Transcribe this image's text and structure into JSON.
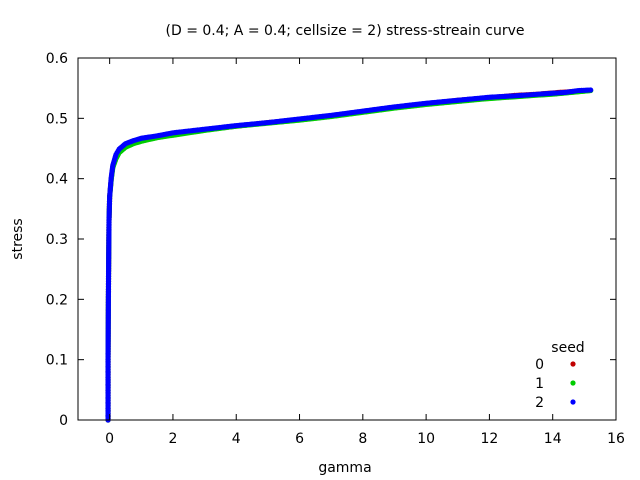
{
  "chart_data": {
    "type": "scatter",
    "title": "(D = 0.4; A = 0.4; cellsize = 2) stress-streain curve",
    "xlabel": "gamma",
    "ylabel": "stress",
    "xlim": [
      -1,
      16
    ],
    "ylim": [
      0,
      0.6
    ],
    "xticks": [
      "0",
      "2",
      "4",
      "6",
      "8",
      "10",
      "12",
      "14",
      "16"
    ],
    "yticks": [
      "0",
      "0.1",
      "0.2",
      "0.3",
      "0.4",
      "0.5",
      "0.6"
    ],
    "grid": false,
    "legend": {
      "title": "seed",
      "position": "bottom-right"
    },
    "series": [
      {
        "name": "0",
        "color": "#c00000",
        "x": [
          -0.05,
          -0.05,
          -0.04,
          -0.03,
          -0.02,
          0.0,
          0.05,
          0.1,
          0.2,
          0.3,
          0.5,
          0.75,
          1.0,
          1.5,
          2.0,
          2.5,
          3.0,
          4.0,
          5.0,
          6.0,
          7.0,
          8.0,
          9.0,
          10.0,
          11.0,
          12.0,
          12.8,
          13.5,
          14.2,
          14.8
        ],
        "y": [
          0.0,
          0.1,
          0.2,
          0.27,
          0.33,
          0.37,
          0.4,
          0.42,
          0.438,
          0.447,
          0.456,
          0.461,
          0.465,
          0.47,
          0.474,
          0.478,
          0.481,
          0.487,
          0.493,
          0.498,
          0.504,
          0.511,
          0.518,
          0.524,
          0.53,
          0.534,
          0.538,
          0.54,
          0.543,
          0.545
        ]
      },
      {
        "name": "1",
        "color": "#00cc00",
        "x": [
          -0.05,
          -0.05,
          -0.04,
          -0.03,
          -0.02,
          0.0,
          0.05,
          0.1,
          0.2,
          0.3,
          0.5,
          0.75,
          1.0,
          1.5,
          2.0,
          2.5,
          3.0,
          4.0,
          5.0,
          6.0,
          7.0,
          8.0,
          9.0,
          10.0,
          11.0,
          11.8,
          12.6,
          13.4,
          14.0,
          14.6,
          15.2
        ],
        "y": [
          0.0,
          0.1,
          0.2,
          0.27,
          0.33,
          0.37,
          0.398,
          0.418,
          0.433,
          0.443,
          0.452,
          0.458,
          0.462,
          0.468,
          0.472,
          0.476,
          0.48,
          0.487,
          0.492,
          0.497,
          0.503,
          0.51,
          0.517,
          0.523,
          0.528,
          0.532,
          0.535,
          0.538,
          0.54,
          0.543,
          0.546
        ]
      },
      {
        "name": "2",
        "color": "#0000ff",
        "x": [
          -0.05,
          -0.05,
          -0.04,
          -0.03,
          -0.02,
          0.0,
          0.05,
          0.1,
          0.2,
          0.3,
          0.5,
          0.75,
          1.0,
          1.5,
          2.0,
          2.5,
          3.0,
          4.0,
          5.0,
          6.0,
          7.0,
          8.0,
          9.0,
          10.0,
          11.0,
          12.0,
          13.0,
          13.8,
          14.4,
          14.8,
          15.2
        ],
        "y": [
          0.0,
          0.1,
          0.2,
          0.27,
          0.33,
          0.37,
          0.402,
          0.422,
          0.44,
          0.449,
          0.458,
          0.463,
          0.467,
          0.471,
          0.476,
          0.479,
          0.482,
          0.488,
          0.493,
          0.499,
          0.505,
          0.512,
          0.519,
          0.525,
          0.53,
          0.535,
          0.538,
          0.541,
          0.543,
          0.546,
          0.547
        ]
      }
    ]
  }
}
